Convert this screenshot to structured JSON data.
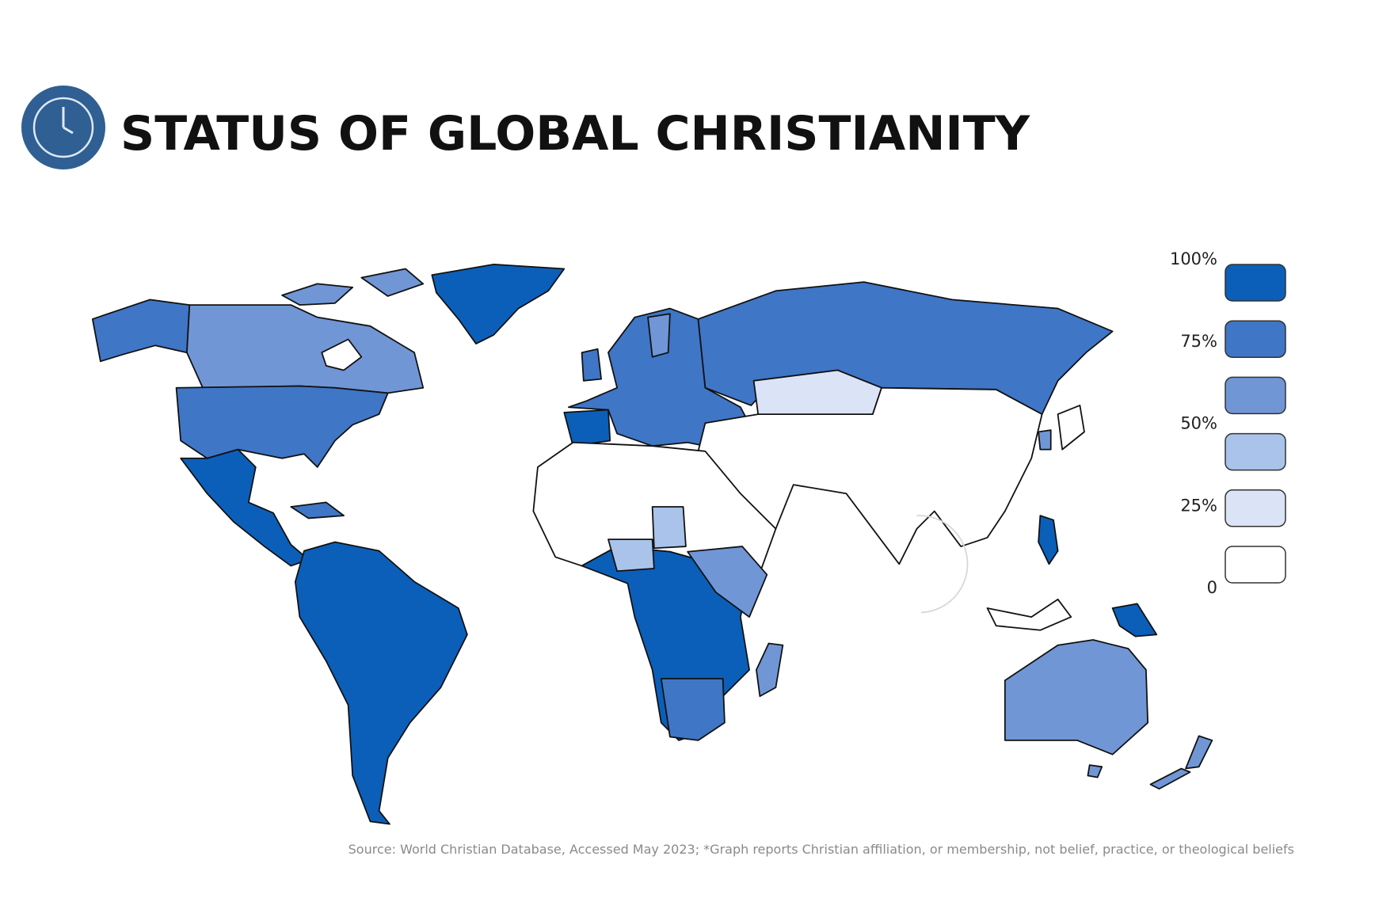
{
  "header": {
    "title": "STATUS OF GLOBAL CHRISTIANITY"
  },
  "legend": {
    "labels": [
      "100%",
      "75%",
      "50%",
      "25%",
      "0"
    ],
    "colors": [
      "#0b5fb9",
      "#3f76c6",
      "#7096d6",
      "#aac3eb",
      "#dbe3f6",
      "#ffffff"
    ]
  },
  "source": "Source: World Christian Database, Accessed May 2023; *Graph reports Christian affiliation, or membership, not belief, practice, or theological beliefs"
}
